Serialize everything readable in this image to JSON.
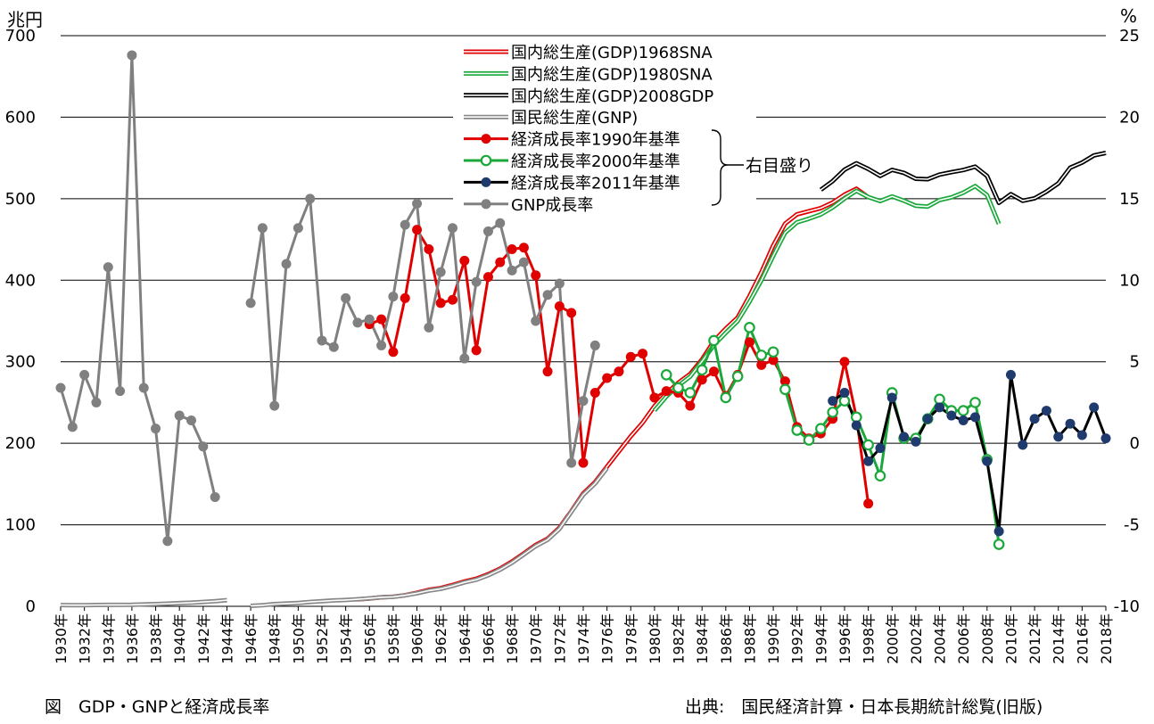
{
  "chart_data": {
    "type": "line",
    "title": "",
    "left_axis": {
      "unit": "兆円",
      "range": [
        0,
        700
      ],
      "ticks": [
        0,
        100,
        200,
        300,
        400,
        500,
        600,
        700
      ]
    },
    "right_axis": {
      "unit": "%",
      "range": [
        -10,
        25
      ],
      "ticks": [
        -10,
        -5,
        0,
        5,
        10,
        15,
        20,
        25
      ]
    },
    "x_range": [
      1930,
      2018
    ],
    "x_tick_years": [
      1930,
      1932,
      1934,
      1936,
      1938,
      1940,
      1942,
      1944,
      1946,
      1948,
      1950,
      1952,
      1954,
      1956,
      1958,
      1960,
      1962,
      1964,
      1966,
      1968,
      1970,
      1972,
      1974,
      1976,
      1978,
      1980,
      1982,
      1984,
      1986,
      1988,
      1990,
      1992,
      1994,
      1996,
      1998,
      2000,
      2002,
      2004,
      2006,
      2008,
      2010,
      2012,
      2014,
      2016,
      2018
    ],
    "x_tick_suffix": "年",
    "grid": true,
    "legend_position": "top-center",
    "legend_bracket_label": "右目盛り",
    "series": [
      {
        "name": "国内総生産(GDP)1968SNA",
        "axis": "left",
        "style": "double-line",
        "color": "#e00000",
        "points": [
          [
            1955,
            8.4
          ],
          [
            1956,
            9.6
          ],
          [
            1957,
            11.1
          ],
          [
            1958,
            11.8
          ],
          [
            1959,
            13.6
          ],
          [
            1960,
            16.6
          ],
          [
            1961,
            20.2
          ],
          [
            1962,
            22.3
          ],
          [
            1963,
            26.1
          ],
          [
            1964,
            30.4
          ],
          [
            1965,
            33.8
          ],
          [
            1966,
            39.4
          ],
          [
            1967,
            46.2
          ],
          [
            1968,
            54.9
          ],
          [
            1969,
            64.9
          ],
          [
            1970,
            75.3
          ],
          [
            1971,
            82.9
          ],
          [
            1972,
            96.5
          ],
          [
            1973,
            116.7
          ],
          [
            1974,
            138.5
          ],
          [
            1975,
            152.4
          ],
          [
            1976,
            171.3
          ],
          [
            1977,
            190.1
          ],
          [
            1978,
            208.6
          ],
          [
            1979,
            225.2
          ],
          [
            1980,
            245.5
          ],
          [
            1981,
            261.1
          ],
          [
            1982,
            274.1
          ],
          [
            1983,
            285.0
          ],
          [
            1984,
            302.9
          ],
          [
            1985,
            325.4
          ],
          [
            1986,
            340.6
          ],
          [
            1987,
            354.2
          ],
          [
            1988,
            380.7
          ],
          [
            1989,
            410.1
          ],
          [
            1990,
            442.8
          ],
          [
            1991,
            469.4
          ],
          [
            1992,
            480.8
          ],
          [
            1993,
            484.6
          ],
          [
            1994,
            488.5
          ],
          [
            1995,
            495.2
          ],
          [
            1996,
            505.0
          ],
          [
            1997,
            512.2
          ],
          [
            1998,
            501.8
          ]
        ]
      },
      {
        "name": "国内総生産(GDP)1980SNA",
        "axis": "left",
        "style": "double-line",
        "color": "#1aa83a",
        "points": [
          [
            1980,
            240.2
          ],
          [
            1981,
            257.4
          ],
          [
            1982,
            270.6
          ],
          [
            1983,
            281.8
          ],
          [
            1984,
            300.5
          ],
          [
            1985,
            320.4
          ],
          [
            1986,
            335.5
          ],
          [
            1987,
            349.8
          ],
          [
            1988,
            373.7
          ],
          [
            1989,
            399.9
          ],
          [
            1990,
            430.0
          ],
          [
            1991,
            458.3
          ],
          [
            1992,
            471.0
          ],
          [
            1993,
            475.4
          ],
          [
            1994,
            480.7
          ],
          [
            1995,
            489.2
          ],
          [
            1996,
            500.2
          ],
          [
            1997,
            509.7
          ],
          [
            1998,
            502.0
          ],
          [
            1999,
            497.1
          ],
          [
            2000,
            502.8
          ],
          [
            2001,
            497.6
          ],
          [
            2002,
            491.3
          ],
          [
            2003,
            490.3
          ],
          [
            2004,
            498.3
          ],
          [
            2005,
            501.7
          ],
          [
            2006,
            507.4
          ],
          [
            2007,
            515.5
          ],
          [
            2008,
            504.4
          ],
          [
            2009,
            469.0
          ]
        ]
      },
      {
        "name": "国内総生産(GDP)2008GDP",
        "axis": "left",
        "style": "double-line",
        "color": "#000000",
        "points": [
          [
            1994,
            510.9
          ],
          [
            1995,
            521.6
          ],
          [
            1996,
            535.6
          ],
          [
            1997,
            543.5
          ],
          [
            1998,
            536.5
          ],
          [
            1999,
            528.0
          ],
          [
            2000,
            535.4
          ],
          [
            2001,
            531.7
          ],
          [
            2002,
            524.5
          ],
          [
            2003,
            523.9
          ],
          [
            2004,
            529.6
          ],
          [
            2005,
            532.5
          ],
          [
            2006,
            535.2
          ],
          [
            2007,
            539.3
          ],
          [
            2008,
            527.8
          ],
          [
            2009,
            494.9
          ],
          [
            2010,
            505.5
          ],
          [
            2011,
            497.4
          ],
          [
            2012,
            500.5
          ],
          [
            2013,
            508.7
          ],
          [
            2014,
            518.8
          ],
          [
            2015,
            538.0
          ],
          [
            2016,
            544.4
          ],
          [
            2017,
            553.1
          ],
          [
            2018,
            556.2
          ]
        ]
      },
      {
        "name": "国民総生産(GNP)",
        "axis": "left",
        "style": "double-line",
        "color": "#888888",
        "points": [
          [
            1930,
            1.5
          ],
          [
            1931,
            1.4
          ],
          [
            1932,
            1.4
          ],
          [
            1933,
            1.6
          ],
          [
            1934,
            1.7
          ],
          [
            1935,
            1.8
          ],
          [
            1936,
            1.9
          ],
          [
            1937,
            2.3
          ],
          [
            1938,
            2.7
          ],
          [
            1939,
            3.3
          ],
          [
            1940,
            3.9
          ],
          [
            1941,
            4.5
          ],
          [
            1942,
            5.4
          ],
          [
            1943,
            6.2
          ],
          [
            1944,
            7.5
          ],
          [
            1946,
            0.5
          ],
          [
            1947,
            1.3
          ],
          [
            1948,
            2.7
          ],
          [
            1949,
            3.4
          ],
          [
            1950,
            4.0
          ],
          [
            1951,
            5.4
          ],
          [
            1952,
            6.2
          ],
          [
            1953,
            7.2
          ],
          [
            1954,
            7.8
          ],
          [
            1955,
            8.6
          ],
          [
            1956,
            9.7
          ],
          [
            1957,
            11.1
          ],
          [
            1958,
            11.6
          ],
          [
            1959,
            13.5
          ],
          [
            1960,
            16.0
          ],
          [
            1961,
            19.3
          ],
          [
            1962,
            21.4
          ],
          [
            1963,
            25.0
          ],
          [
            1964,
            29.3
          ],
          [
            1965,
            32.6
          ],
          [
            1966,
            38.1
          ],
          [
            1967,
            44.9
          ],
          [
            1968,
            53.4
          ],
          [
            1969,
            63.5
          ],
          [
            1970,
            73.8
          ],
          [
            1971,
            81.6
          ],
          [
            1972,
            95.0
          ],
          [
            1973,
            115.8
          ],
          [
            1974,
            136.8
          ],
          [
            1975,
            150.6
          ],
          [
            1976,
            169.4
          ]
        ]
      },
      {
        "name": "経済成長率1990年基準",
        "axis": "right",
        "style": "line-markers",
        "color": "#e00000",
        "points": [
          [
            1956,
            7.3
          ],
          [
            1957,
            7.6
          ],
          [
            1958,
            5.6
          ],
          [
            1959,
            8.9
          ],
          [
            1960,
            13.1
          ],
          [
            1961,
            11.9
          ],
          [
            1962,
            8.6
          ],
          [
            1963,
            8.8
          ],
          [
            1964,
            11.2
          ],
          [
            1965,
            5.7
          ],
          [
            1966,
            10.2
          ],
          [
            1967,
            11.1
          ],
          [
            1968,
            11.9
          ],
          [
            1969,
            12.0
          ],
          [
            1970,
            10.3
          ],
          [
            1971,
            4.4
          ],
          [
            1972,
            8.4
          ],
          [
            1973,
            8.0
          ],
          [
            1974,
            -1.2
          ],
          [
            1975,
            3.1
          ],
          [
            1976,
            4.0
          ],
          [
            1977,
            4.4
          ],
          [
            1978,
            5.3
          ],
          [
            1979,
            5.5
          ],
          [
            1980,
            2.8
          ],
          [
            1981,
            3.2
          ],
          [
            1982,
            3.1
          ],
          [
            1983,
            2.3
          ],
          [
            1984,
            3.9
          ],
          [
            1985,
            4.4
          ],
          [
            1986,
            2.9
          ],
          [
            1987,
            4.2
          ],
          [
            1988,
            6.2
          ],
          [
            1989,
            4.8
          ],
          [
            1990,
            5.1
          ],
          [
            1991,
            3.8
          ],
          [
            1992,
            1.0
          ],
          [
            1993,
            0.3
          ],
          [
            1994,
            0.6
          ],
          [
            1995,
            1.5
          ],
          [
            1996,
            5.0
          ],
          [
            1997,
            1.6
          ],
          [
            1998,
            -3.7
          ]
        ]
      },
      {
        "name": "経済成長率2000年基準",
        "axis": "right",
        "style": "line-open-markers",
        "color": "#1aa83a",
        "points": [
          [
            1981,
            4.2
          ],
          [
            1982,
            3.4
          ],
          [
            1983,
            3.1
          ],
          [
            1984,
            4.5
          ],
          [
            1985,
            6.3
          ],
          [
            1986,
            2.8
          ],
          [
            1987,
            4.1
          ],
          [
            1988,
            7.1
          ],
          [
            1989,
            5.4
          ],
          [
            1990,
            5.6
          ],
          [
            1991,
            3.3
          ],
          [
            1992,
            0.8
          ],
          [
            1993,
            0.2
          ],
          [
            1994,
            0.9
          ],
          [
            1995,
            1.9
          ],
          [
            1996,
            2.6
          ],
          [
            1997,
            1.6
          ],
          [
            1998,
            -0.1
          ],
          [
            1999,
            -2.0
          ],
          [
            2000,
            3.1
          ],
          [
            2001,
            0.3
          ],
          [
            2002,
            0.3
          ],
          [
            2003,
            1.5
          ],
          [
            2004,
            2.7
          ],
          [
            2005,
            2.0
          ],
          [
            2006,
            2.0
          ],
          [
            2007,
            2.5
          ],
          [
            2008,
            -1.0
          ],
          [
            2009,
            -6.2
          ]
        ]
      },
      {
        "name": "経済成長率2011年基準",
        "axis": "right",
        "style": "line-markers",
        "color": "#000000",
        "marker_color": "#1f3b6e",
        "points": [
          [
            1995,
            2.6
          ],
          [
            1996,
            3.1
          ],
          [
            1997,
            1.1
          ],
          [
            1998,
            -1.1
          ],
          [
            1999,
            -0.3
          ],
          [
            2000,
            2.8
          ],
          [
            2001,
            0.4
          ],
          [
            2002,
            0.1
          ],
          [
            2003,
            1.5
          ],
          [
            2004,
            2.2
          ],
          [
            2005,
            1.7
          ],
          [
            2006,
            1.4
          ],
          [
            2007,
            1.6
          ],
          [
            2008,
            -1.1
          ],
          [
            2009,
            -5.4
          ],
          [
            2010,
            4.2
          ],
          [
            2011,
            -0.1
          ],
          [
            2012,
            1.5
          ],
          [
            2013,
            2.0
          ],
          [
            2014,
            0.4
          ],
          [
            2015,
            1.2
          ],
          [
            2016,
            0.5
          ],
          [
            2017,
            2.2
          ],
          [
            2018,
            0.3
          ]
        ]
      },
      {
        "name": "GNP成長率",
        "axis": "right",
        "style": "line-markers",
        "color": "#808080",
        "points": [
          [
            1930,
            3.4
          ],
          [
            1931,
            1.0
          ],
          [
            1932,
            4.2
          ],
          [
            1933,
            2.5
          ],
          [
            1934,
            10.8
          ],
          [
            1935,
            3.2
          ],
          [
            1936,
            23.8
          ],
          [
            1937,
            3.4
          ],
          [
            1938,
            0.9
          ],
          [
            1939,
            -6.0
          ],
          [
            1940,
            1.7
          ],
          [
            1941,
            1.4
          ],
          [
            1942,
            -0.2
          ],
          [
            1943,
            -3.3
          ],
          [
            1946,
            8.6
          ],
          [
            1947,
            13.2
          ],
          [
            1948,
            2.3
          ],
          [
            1949,
            11.0
          ],
          [
            1950,
            13.2
          ],
          [
            1951,
            15.0
          ],
          [
            1952,
            6.3
          ],
          [
            1953,
            5.9
          ],
          [
            1954,
            8.9
          ],
          [
            1955,
            7.4
          ],
          [
            1956,
            7.6
          ],
          [
            1957,
            6.0
          ],
          [
            1958,
            9.0
          ],
          [
            1959,
            13.4
          ],
          [
            1960,
            14.7
          ],
          [
            1961,
            7.1
          ],
          [
            1962,
            10.5
          ],
          [
            1963,
            13.2
          ],
          [
            1964,
            5.2
          ],
          [
            1965,
            9.9
          ],
          [
            1966,
            13.0
          ],
          [
            1967,
            13.5
          ],
          [
            1968,
            10.6
          ],
          [
            1969,
            11.1
          ],
          [
            1970,
            7.5
          ],
          [
            1971,
            9.1
          ],
          [
            1972,
            9.8
          ],
          [
            1973,
            -1.2
          ],
          [
            1974,
            2.6
          ],
          [
            1975,
            6.0
          ]
        ]
      }
    ]
  },
  "captions": {
    "figure_title": "図　GDP・GNPと経済成長率",
    "source": "出典:　国民経済計算・日本長期統計総覧(旧版)"
  }
}
